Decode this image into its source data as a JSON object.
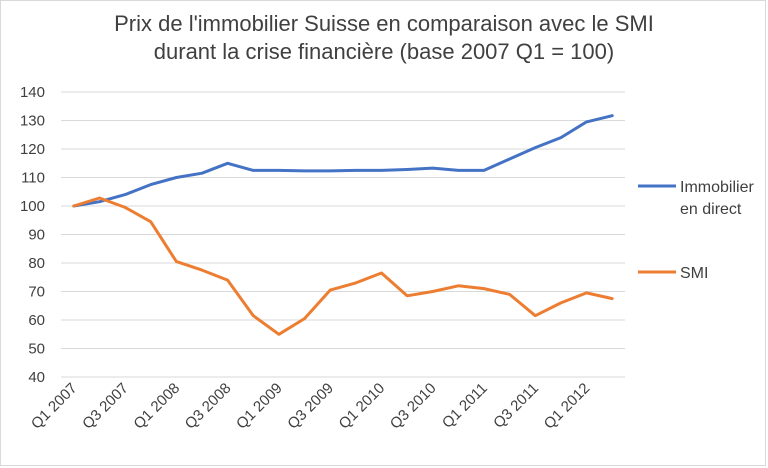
{
  "chart_data": {
    "type": "line",
    "title_line1": "Prix de l'immobilier Suisse en comparaison avec le SMI",
    "title_line2": "durant la crise financière (base 2007 Q1 = 100)",
    "xlabel": "",
    "ylabel": "",
    "ylim": [
      40,
      140
    ],
    "yticks": [
      40,
      50,
      60,
      70,
      80,
      90,
      100,
      110,
      120,
      130,
      140
    ],
    "grid": true,
    "legend_position": "right",
    "x": [
      "Q1 2007",
      "Q2 2007",
      "Q3 2007",
      "Q4 2007",
      "Q1 2008",
      "Q2 2008",
      "Q3 2008",
      "Q4 2008",
      "Q1 2009",
      "Q2 2009",
      "Q3 2009",
      "Q4 2009",
      "Q1 2010",
      "Q2 2010",
      "Q3 2010",
      "Q4 2010",
      "Q1 2011",
      "Q2 2011",
      "Q3 2011",
      "Q4 2011",
      "Q1 2012",
      "Q2 2012"
    ],
    "x_tick_labels": [
      "Q1 2007",
      "",
      "Q3 2007",
      "",
      "Q1 2008",
      "",
      "Q3 2008",
      "",
      "Q1 2009",
      "",
      "Q3 2009",
      "",
      "Q1 2010",
      "",
      "Q3 2010",
      "",
      "Q1 2011",
      "",
      "Q3 2011",
      "",
      "Q1 2012",
      ""
    ],
    "series": [
      {
        "name": "Immobilier en direct",
        "legend_lines": [
          "Immobilier",
          "en direct"
        ],
        "color": "#4472c4",
        "values": [
          100,
          101.5,
          104,
          107.5,
          110,
          111.5,
          115,
          112.5,
          112.5,
          112.3,
          112.3,
          112.5,
          112.5,
          112.8,
          113.3,
          112.5,
          112.5,
          116.5,
          120.5,
          124,
          129.5,
          131.7
        ]
      },
      {
        "name": "SMI",
        "legend_lines": [
          "SMI"
        ],
        "color": "#ed7d31",
        "values": [
          100,
          102.8,
          99.5,
          94.5,
          80.5,
          77.5,
          74,
          61.5,
          55,
          60.5,
          70.5,
          73,
          76.5,
          68.5,
          70,
          72,
          71,
          69,
          61.5,
          66,
          69.5,
          67.5
        ]
      }
    ]
  }
}
